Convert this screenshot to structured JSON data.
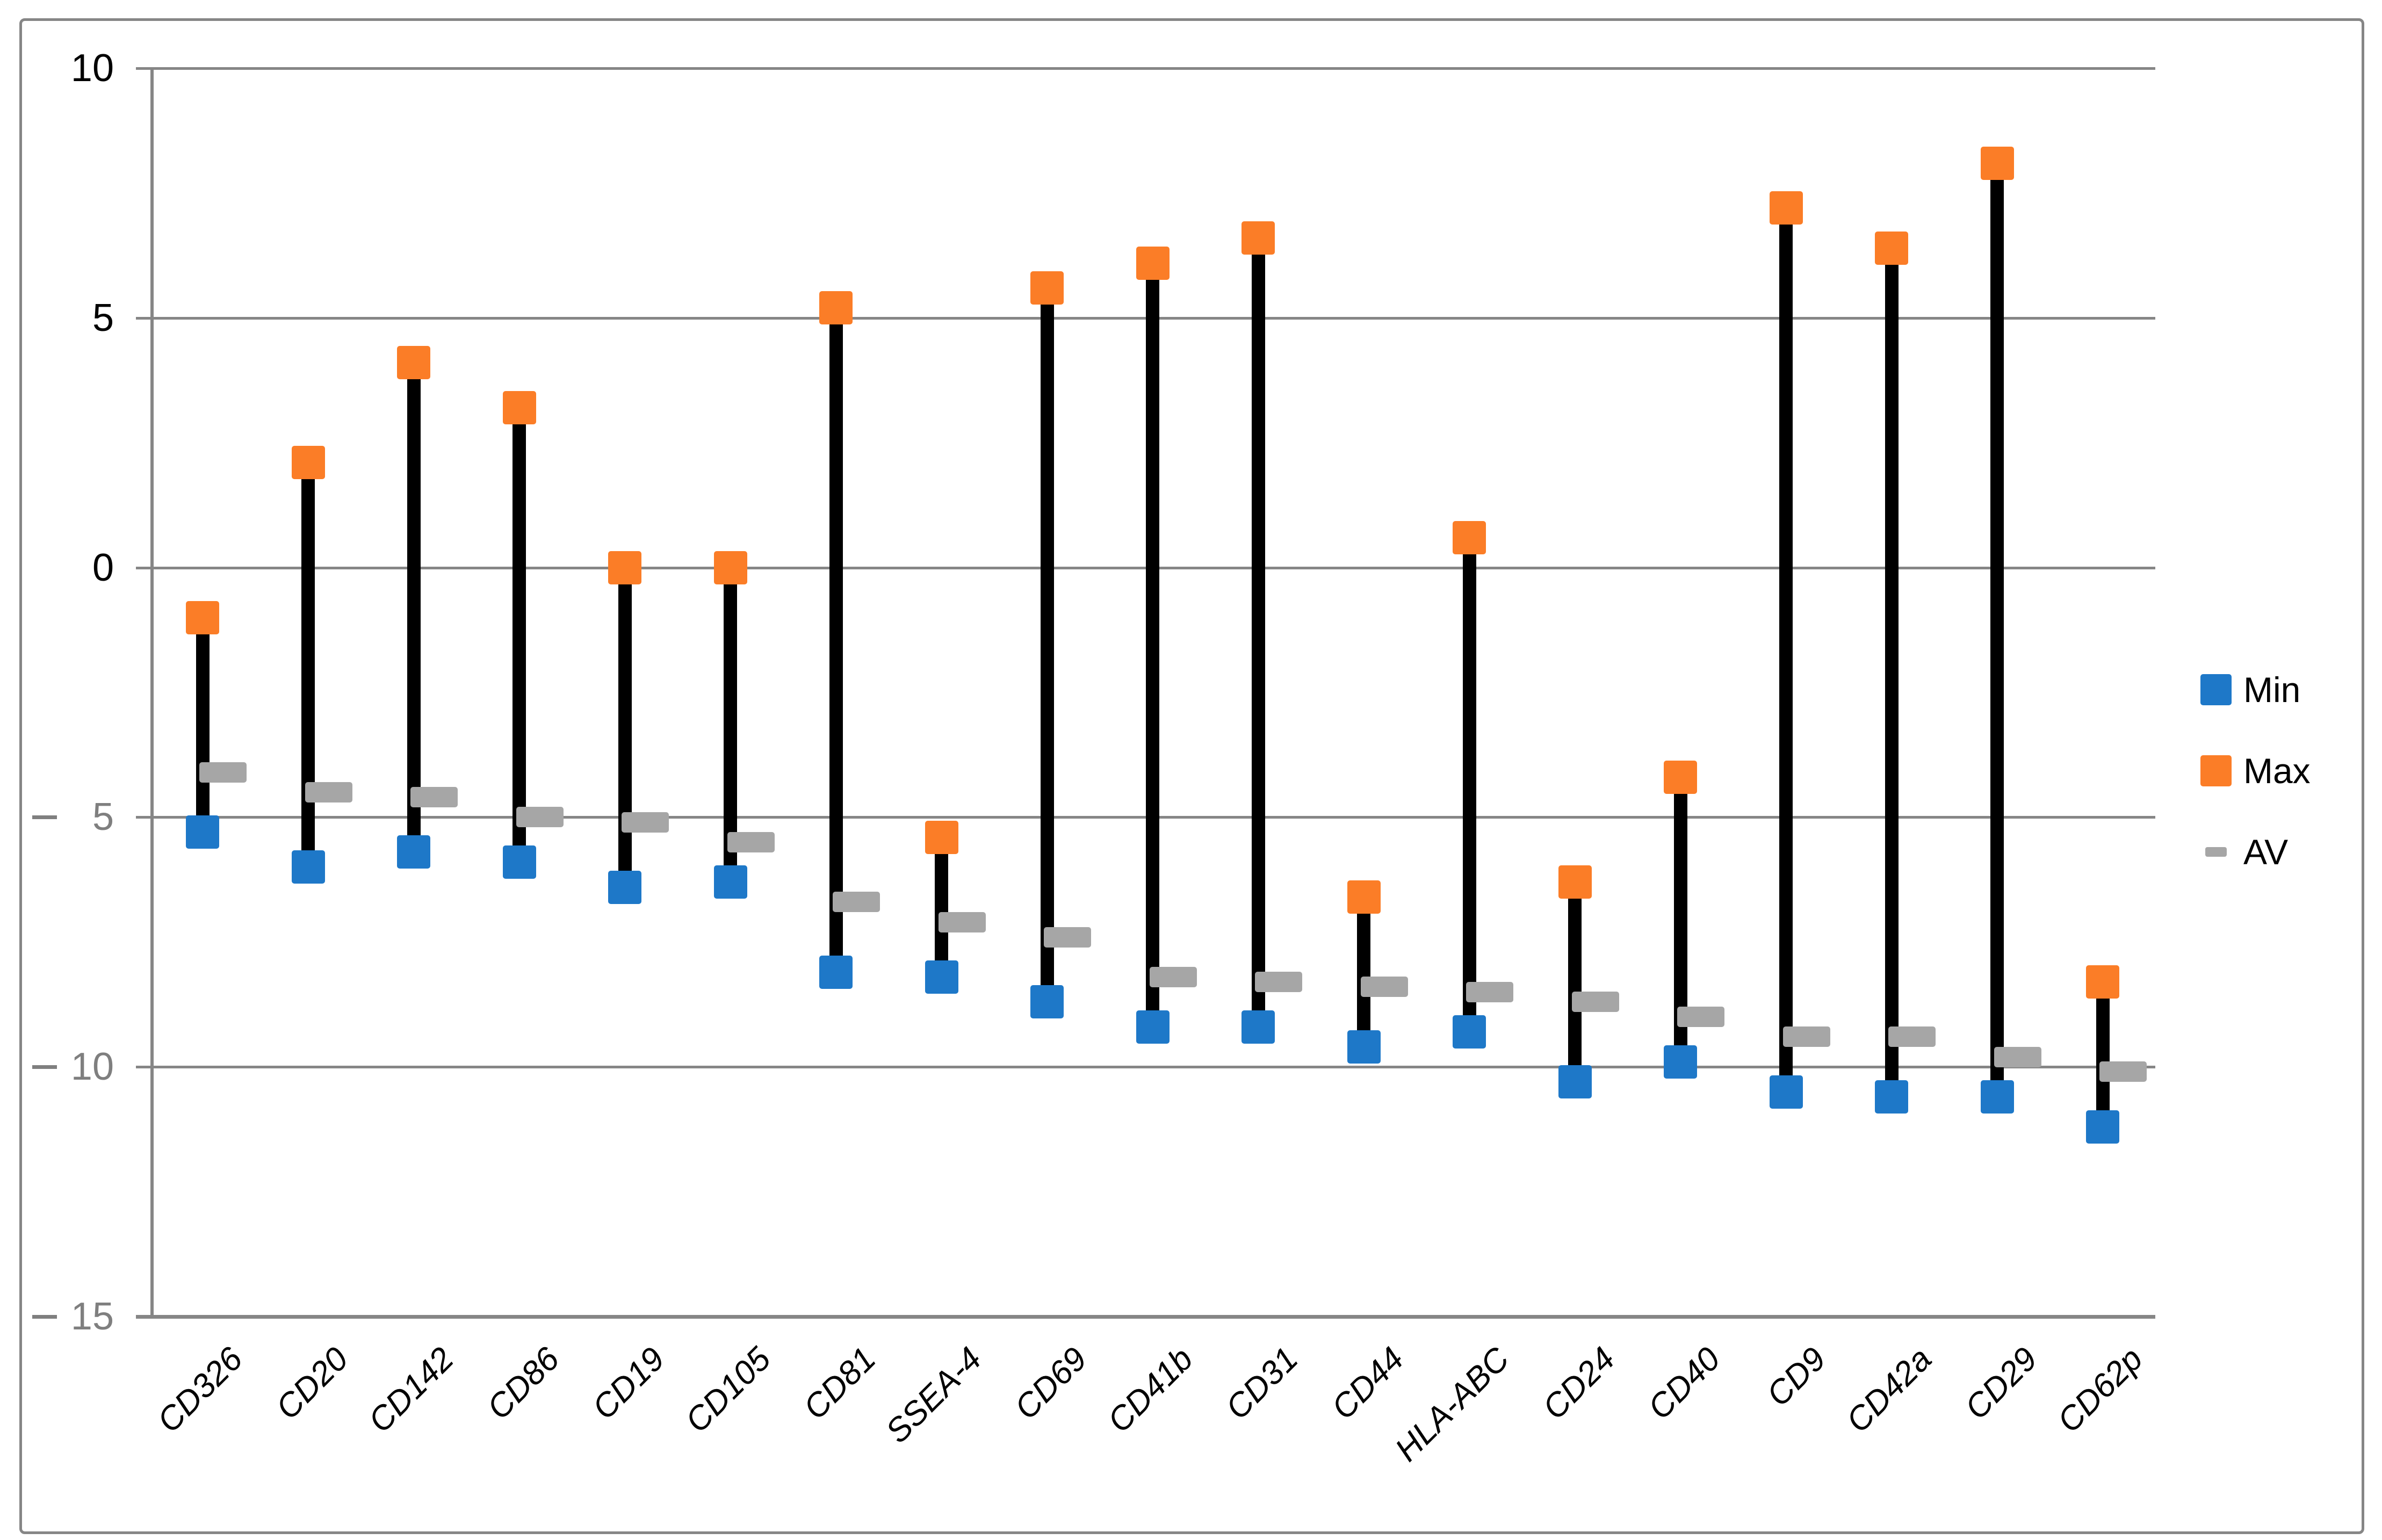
{
  "figure": {
    "background": "#ffffff",
    "border_color": "#868686"
  },
  "chart_data": {
    "type": "bar",
    "subtype": "high-low range (stock-style Min/Max whiskers with average dash markers)",
    "title": "",
    "xlabel": "",
    "ylabel": "",
    "ylim": [
      -15,
      10
    ],
    "yticks": [
      10,
      5,
      0,
      -5,
      -10,
      -15
    ],
    "ytick_labels": [
      "10",
      "5",
      "0",
      "– 5",
      "– 10",
      "– 15"
    ],
    "grid": true,
    "legend_position": "right-middle",
    "stem_color": "#000000",
    "gridline_color": "#868686",
    "categories": [
      "CD326",
      "CD20",
      "CD142",
      "CD86",
      "CD19",
      "CD105",
      "CD81",
      "SSEA-4",
      "CD69",
      "CD41b",
      "CD31",
      "CD44",
      "HLA-ABC",
      "CD24",
      "CD40",
      "CD9",
      "CD42a",
      "CD29",
      "CD62p"
    ],
    "series": [
      {
        "name": "Min",
        "marker": "square",
        "color": "#1e78c8",
        "values": [
          -5.3,
          -6.0,
          -5.7,
          -5.9,
          -6.4,
          -6.3,
          -8.1,
          -8.2,
          -8.7,
          -9.2,
          -9.2,
          -9.6,
          -9.3,
          -10.3,
          -9.9,
          -10.5,
          -10.6,
          -10.6,
          -11.2
        ]
      },
      {
        "name": "Max",
        "marker": "square",
        "color": "#fb7d27",
        "values": [
          -1.0,
          2.1,
          4.1,
          3.2,
          0.0,
          0.0,
          5.2,
          -5.4,
          5.6,
          6.1,
          6.6,
          -6.6,
          0.6,
          -6.3,
          -4.2,
          7.2,
          6.4,
          8.1,
          -8.3
        ]
      },
      {
        "name": "AV",
        "marker": "dash",
        "color": "#a6a6a6",
        "values": [
          -4.1,
          -4.5,
          -4.6,
          -5.0,
          -5.1,
          -5.5,
          -6.7,
          -7.1,
          -7.4,
          -8.2,
          -8.3,
          -8.4,
          -8.5,
          -8.7,
          -9.0,
          -9.4,
          -9.4,
          -9.8,
          -10.1
        ]
      }
    ]
  },
  "y_axis": {
    "positive_label_color": "#000000",
    "negative_label_color": "#7f7f7f"
  }
}
